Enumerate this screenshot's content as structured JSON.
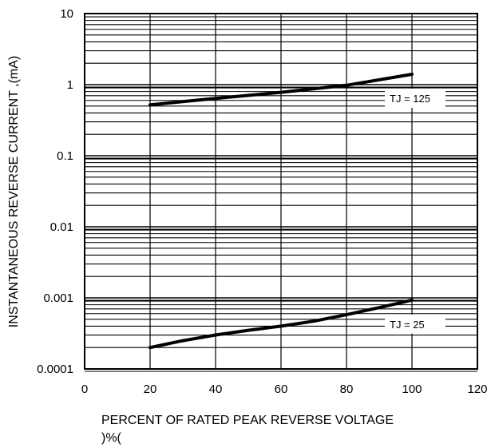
{
  "chart_data": {
    "type": "line",
    "title": "",
    "xlabel": "PERCENT OF RATED PEAK REVERSE VOLTAGE",
    "xlabel_line2": ")%(",
    "ylabel": "INSTANTANEOUS REVERSE CURRENT ,(mA)",
    "xlim": [
      0,
      120
    ],
    "ylim": [
      0.0001,
      10
    ],
    "yscale": "log",
    "grid": true,
    "x_ticks": [
      0,
      20,
      40,
      60,
      80,
      100,
      120
    ],
    "x_tick_labels": [
      "0",
      "20",
      "40",
      "60",
      "80",
      "100",
      "120"
    ],
    "y_ticks": [
      0.0001,
      0.001,
      0.01,
      0.1,
      1,
      10
    ],
    "y_tick_labels": [
      "0.0001",
      "0.001",
      "0.01",
      "0.1",
      "1",
      "10"
    ],
    "series": [
      {
        "name": "TJ = 125",
        "x": [
          20,
          40,
          60,
          80,
          100
        ],
        "y": [
          0.52,
          0.64,
          0.78,
          0.98,
          1.4
        ],
        "label_at": [
          100,
          1.4
        ],
        "label_box": [
          0.0,
          1.0,
          0.0,
          1.0
        ]
      },
      {
        "name": "TJ = 25",
        "x": [
          20,
          30,
          40,
          50,
          60,
          70,
          80,
          90,
          100
        ],
        "y": [
          0.0002,
          0.00025,
          0.0003,
          0.00035,
          0.0004,
          0.00047,
          0.00058,
          0.00073,
          0.00093
        ],
        "label_at": [
          100,
          0.00093
        ]
      }
    ]
  }
}
